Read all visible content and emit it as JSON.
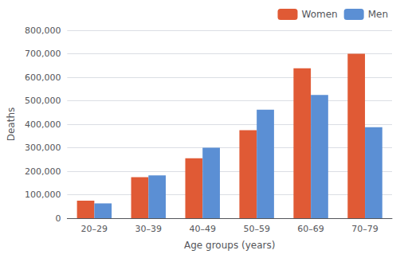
{
  "chart_data": {
    "type": "bar",
    "categories": [
      "20–29",
      "30–39",
      "40–49",
      "50–59",
      "60–69",
      "70–79"
    ],
    "series": [
      {
        "name": "Women",
        "color": "#E05A35",
        "values": [
          75000,
          175000,
          255000,
          375000,
          638000,
          700000
        ]
      },
      {
        "name": "Men",
        "color": "#5B8FD4",
        "values": [
          63000,
          182000,
          300000,
          462000,
          525000,
          387000
        ]
      }
    ],
    "xlabel": "Age groups (years)",
    "ylabel": "Deaths",
    "ylim": [
      0,
      800000
    ],
    "yticks": [
      0,
      {
        "value": 100000,
        "label": "100,000"
      },
      {
        "value": 200000,
        "label": "200,000"
      },
      {
        "value": 300000,
        "label": "300,000"
      },
      {
        "value": 400000,
        "label": "400,000"
      },
      {
        "value": 500000,
        "label": "500,000"
      },
      {
        "value": 600000,
        "label": "600,000"
      },
      {
        "value": 700000,
        "label": "700,000"
      },
      {
        "value": 800000,
        "label": "800,000"
      }
    ],
    "grid": true,
    "legend": "upper right"
  }
}
